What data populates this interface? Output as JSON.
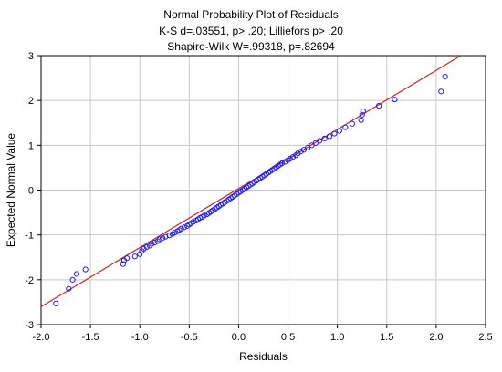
{
  "chart_data": {
    "type": "scatter",
    "title": "Normal Probability Plot of Residuals",
    "subtitle_lines": [
      "K-S d=.03551, p> .20; Lilliefors p> .20",
      "Shapiro-Wilk W=.99318, p=.82694"
    ],
    "xlabel": "Residuals",
    "ylabel": "Expected Normal Value",
    "xlim": [
      -2.0,
      2.5
    ],
    "ylim": [
      -3,
      3
    ],
    "xticks": [
      "-2.0",
      "-1.5",
      "-1.0",
      "-0.5",
      "0.0",
      "0.5",
      "1.0",
      "1.5",
      "2.0",
      "2.5"
    ],
    "yticks": [
      "-3",
      "-2",
      "-1",
      "0",
      "1",
      "2",
      "3"
    ],
    "xtick_values": [
      -2.0,
      -1.5,
      -1.0,
      -0.5,
      0.0,
      0.5,
      1.0,
      1.5,
      2.0,
      2.5
    ],
    "ytick_values": [
      -3,
      -2,
      -1,
      0,
      1,
      2,
      3
    ],
    "grid": true,
    "reference_line": {
      "x1": -2.0,
      "y1": -2.6,
      "x2": 2.25,
      "y2": 3.0,
      "color": "#d62020"
    },
    "marker_color": "#1a1aff",
    "points": [
      [
        -1.85,
        -2.53
      ],
      [
        -1.72,
        -2.2
      ],
      [
        -1.68,
        -2.0
      ],
      [
        -1.64,
        -1.87
      ],
      [
        -1.55,
        -1.77
      ],
      [
        -1.17,
        -1.65
      ],
      [
        -1.16,
        -1.57
      ],
      [
        -1.13,
        -1.52
      ],
      [
        -1.05,
        -1.48
      ],
      [
        -1.0,
        -1.43
      ],
      [
        -0.98,
        -1.36
      ],
      [
        -0.96,
        -1.31
      ],
      [
        -0.93,
        -1.27
      ],
      [
        -0.9,
        -1.24
      ],
      [
        -0.88,
        -1.2
      ],
      [
        -0.85,
        -1.17
      ],
      [
        -0.82,
        -1.14
      ],
      [
        -0.8,
        -1.1
      ],
      [
        -0.77,
        -1.07
      ],
      [
        -0.74,
        -1.04
      ],
      [
        -0.7,
        -1.01
      ],
      [
        -0.67,
        -0.98
      ],
      [
        -0.65,
        -0.95
      ],
      [
        -0.62,
        -0.92
      ],
      [
        -0.6,
        -0.89
      ],
      [
        -0.58,
        -0.86
      ],
      [
        -0.55,
        -0.83
      ],
      [
        -0.52,
        -0.8
      ],
      [
        -0.5,
        -0.77
      ],
      [
        -0.48,
        -0.74
      ],
      [
        -0.46,
        -0.71
      ],
      [
        -0.43,
        -0.68
      ],
      [
        -0.41,
        -0.65
      ],
      [
        -0.39,
        -0.62
      ],
      [
        -0.37,
        -0.6
      ],
      [
        -0.35,
        -0.57
      ],
      [
        -0.32,
        -0.54
      ],
      [
        -0.3,
        -0.51
      ],
      [
        -0.28,
        -0.48
      ],
      [
        -0.26,
        -0.45
      ],
      [
        -0.24,
        -0.42
      ],
      [
        -0.22,
        -0.39
      ],
      [
        -0.2,
        -0.36
      ],
      [
        -0.18,
        -0.33
      ],
      [
        -0.16,
        -0.3
      ],
      [
        -0.14,
        -0.27
      ],
      [
        -0.12,
        -0.24
      ],
      [
        -0.1,
        -0.21
      ],
      [
        -0.08,
        -0.18
      ],
      [
        -0.06,
        -0.15
      ],
      [
        -0.04,
        -0.12
      ],
      [
        -0.02,
        -0.09
      ],
      [
        0.0,
        -0.06
      ],
      [
        0.02,
        -0.03
      ],
      [
        0.04,
        0.0
      ],
      [
        0.06,
        0.03
      ],
      [
        0.08,
        0.06
      ],
      [
        0.1,
        0.09
      ],
      [
        0.12,
        0.12
      ],
      [
        0.14,
        0.15
      ],
      [
        0.16,
        0.18
      ],
      [
        0.18,
        0.21
      ],
      [
        0.2,
        0.24
      ],
      [
        0.22,
        0.27
      ],
      [
        0.24,
        0.3
      ],
      [
        0.26,
        0.33
      ],
      [
        0.28,
        0.36
      ],
      [
        0.3,
        0.39
      ],
      [
        0.32,
        0.42
      ],
      [
        0.34,
        0.45
      ],
      [
        0.36,
        0.48
      ],
      [
        0.38,
        0.51
      ],
      [
        0.4,
        0.54
      ],
      [
        0.42,
        0.57
      ],
      [
        0.44,
        0.6
      ],
      [
        0.47,
        0.63
      ],
      [
        0.5,
        0.67
      ],
      [
        0.52,
        0.7
      ],
      [
        0.55,
        0.74
      ],
      [
        0.58,
        0.78
      ],
      [
        0.6,
        0.82
      ],
      [
        0.63,
        0.86
      ],
      [
        0.66,
        0.9
      ],
      [
        0.7,
        0.95
      ],
      [
        0.74,
        1.0
      ],
      [
        0.78,
        1.05
      ],
      [
        0.82,
        1.1
      ],
      [
        0.87,
        1.15
      ],
      [
        0.92,
        1.2
      ],
      [
        0.97,
        1.26
      ],
      [
        1.02,
        1.32
      ],
      [
        1.08,
        1.4
      ],
      [
        1.15,
        1.48
      ],
      [
        1.24,
        1.56
      ],
      [
        1.25,
        1.68
      ],
      [
        1.26,
        1.76
      ],
      [
        1.42,
        1.88
      ],
      [
        1.58,
        2.02
      ],
      [
        2.05,
        2.2
      ],
      [
        2.09,
        2.53
      ]
    ]
  }
}
